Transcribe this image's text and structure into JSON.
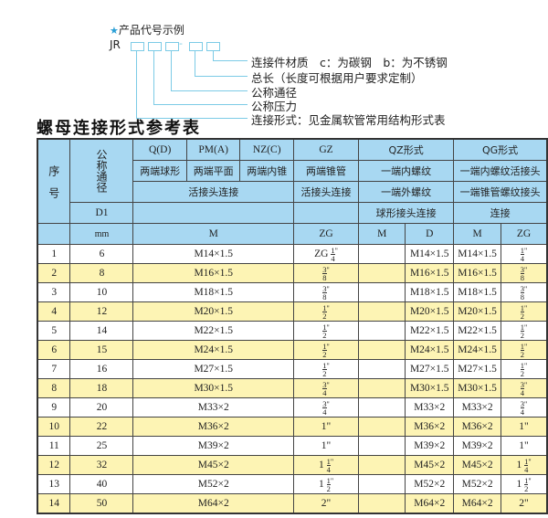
{
  "example": {
    "star": "★",
    "heading": "产品代号示例",
    "code": "JR",
    "dash": "-",
    "labels": [
      "连接件材质　c：为碳钢　b：为不锈钢",
      "总长（长度可根据用户要求定制）",
      "公称通径",
      "公称压力",
      "连接形式：见金属软管常用结构形式表"
    ]
  },
  "title": "螺母连接形式参考表",
  "table": {
    "h": {
      "seq": "序　号",
      "dn": "公称通径",
      "qd": "Q(D)",
      "pm": "PM(A)",
      "nz": "NZ(C)",
      "gz": "GZ",
      "qz": "QZ形式",
      "qg": "QG形式",
      "qd2": "两端球形",
      "pm2": "两端平面",
      "nz2": "两端内锥",
      "gz2": "两端锥管",
      "qz2": "一端内螺纹",
      "qg2": "一端内螺纹活接头",
      "conn": "活接头连接",
      "gz3": "活接头连接",
      "qz3": "一端外螺纹",
      "qg3": "一端锥管螺纹接头",
      "d1": "D1",
      "qz4": "球形接头连接",
      "qg4": "连接",
      "mm": "mm",
      "m": "M",
      "zg": "ZG",
      "qzm": "M",
      "qzd": "D",
      "qgm": "M",
      "qgzg": "ZG"
    },
    "rows": [
      {
        "n": "1",
        "d": "6",
        "m": "M14×1.5",
        "zg": {
          "pre": "ZG",
          "num": "1",
          "den": "4",
          "suf": "\""
        },
        "qzd": "M14×1.5",
        "qgm": "M14×1.5",
        "qgzg": {
          "num": "1",
          "den": "4",
          "suf": "\""
        }
      },
      {
        "n": "2",
        "d": "8",
        "m": "M16×1.5",
        "zg": {
          "num": "3",
          "den": "8",
          "suf": "\""
        },
        "qzd": "M16×1.5",
        "qgm": "M16×1.5",
        "qgzg": {
          "num": "3",
          "den": "8",
          "suf": "\""
        }
      },
      {
        "n": "3",
        "d": "10",
        "m": "M18×1.5",
        "zg": {
          "num": "3",
          "den": "8",
          "suf": "\""
        },
        "qzd": "M18×1.5",
        "qgm": "M18×1.5",
        "qgzg": {
          "num": "3",
          "den": "8",
          "suf": "\""
        }
      },
      {
        "n": "4",
        "d": "12",
        "m": "M20×1.5",
        "zg": {
          "num": "1",
          "den": "2",
          "suf": "\""
        },
        "qzd": "M20×1.5",
        "qgm": "M20×1.5",
        "qgzg": {
          "num": "1",
          "den": "2",
          "suf": "\""
        }
      },
      {
        "n": "5",
        "d": "14",
        "m": "M22×1.5",
        "zg": {
          "num": "1",
          "den": "2",
          "suf": "\""
        },
        "qzd": "M22×1.5",
        "qgm": "M22×1.5",
        "qgzg": {
          "num": "1",
          "den": "2",
          "suf": "\""
        }
      },
      {
        "n": "6",
        "d": "15",
        "m": "M24×1.5",
        "zg": {
          "num": "1",
          "den": "2",
          "suf": "\""
        },
        "qzd": "M24×1.5",
        "qgm": "M24×1.5",
        "qgzg": {
          "num": "1",
          "den": "2",
          "suf": "\""
        }
      },
      {
        "n": "7",
        "d": "16",
        "m": "M27×1.5",
        "zg": {
          "num": "1",
          "den": "2",
          "suf": "\""
        },
        "qzd": "M27×1.5",
        "qgm": "M27×1.5",
        "qgzg": {
          "num": "1",
          "den": "2",
          "suf": "\""
        }
      },
      {
        "n": "8",
        "d": "18",
        "m": "M30×1.5",
        "zg": {
          "num": "3",
          "den": "4",
          "suf": "\""
        },
        "qzd": "M30×1.5",
        "qgm": "M30×1.5",
        "qgzg": {
          "num": "3",
          "den": "4",
          "suf": "\""
        }
      },
      {
        "n": "9",
        "d": "20",
        "m": "M33×2",
        "zg": {
          "num": "3",
          "den": "4",
          "suf": "\""
        },
        "qzd": "M33×2",
        "qgm": "M33×2",
        "qgzg": {
          "num": "3",
          "den": "4",
          "suf": "\""
        }
      },
      {
        "n": "10",
        "d": "22",
        "m": "M36×2",
        "zg": {
          "pre": "1\""
        },
        "qzd": "M36×2",
        "qgm": "M36×2",
        "qgzg": {
          "pre": "1\""
        }
      },
      {
        "n": "11",
        "d": "25",
        "m": "M39×2",
        "zg": {
          "pre": "1\""
        },
        "qzd": "M39×2",
        "qgm": "M39×2",
        "qgzg": {
          "pre": "1\""
        }
      },
      {
        "n": "12",
        "d": "32",
        "m": "M45×2",
        "zg": {
          "pre": "1",
          "num": "1",
          "den": "4",
          "suf": "\""
        },
        "qzd": "M45×2",
        "qgm": "M45×2",
        "qgzg": {
          "pre": "1",
          "num": "1",
          "den": "4",
          "suf": "\""
        }
      },
      {
        "n": "13",
        "d": "40",
        "m": "M52×2",
        "zg": {
          "pre": "1",
          "num": "1",
          "den": "2",
          "suf": "\""
        },
        "qzd": "M52×2",
        "qgm": "M52×2",
        "qgzg": {
          "pre": "1",
          "num": "1",
          "den": "2",
          "suf": "\""
        }
      },
      {
        "n": "14",
        "d": "50",
        "m": "M64×2",
        "zg": {
          "pre": "2\""
        },
        "qzd": "M64×2",
        "qgm": "M64×2",
        "qgzg": {
          "pre": "2\""
        }
      }
    ]
  },
  "colors": {
    "header": "#a8d8f2",
    "stripe": "#fdf4b4",
    "accent": "#7ccbe6"
  }
}
